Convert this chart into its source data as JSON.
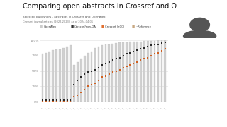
{
  "title": "Comparing open abstracts in Crossref and O",
  "subtitle": "Selected publishers - abstracts in Crossref and OpenAlex",
  "subtitle2": "Crossref journal articles (2022-2023), as of 2024-04-01",
  "legend_items": [
    "OpenAlex",
    "Crossref/non-OA",
    "Crossref (eCC)",
    "~Reference"
  ],
  "legend_colors": [
    "#cccccc",
    "#333333",
    "#e07030",
    "#c8a882"
  ],
  "n_publishers": 36,
  "bar_heights_openalex": [
    0.78,
    0.8,
    0.82,
    0.84,
    0.85,
    0.85,
    0.88,
    0.9,
    0.92,
    0.6,
    0.65,
    0.7,
    0.75,
    0.8,
    0.82,
    0.88,
    0.9,
    0.92,
    0.93,
    0.94,
    0.95,
    0.96,
    0.97,
    0.97,
    0.97,
    0.98,
    0.98,
    0.98,
    0.98,
    0.99,
    0.99,
    0.99,
    0.99,
    1.0,
    1.0,
    1.0
  ],
  "crossref_noa": [
    0.02,
    0.02,
    0.02,
    0.02,
    0.02,
    0.02,
    0.02,
    0.02,
    0.02,
    0.28,
    0.35,
    0.4,
    0.45,
    0.48,
    0.5,
    0.52,
    0.55,
    0.6,
    0.62,
    0.65,
    0.68,
    0.7,
    0.72,
    0.75,
    0.78,
    0.8,
    0.82,
    0.84,
    0.86,
    0.88,
    0.9,
    0.92,
    0.93,
    0.94,
    0.96,
    0.97
  ],
  "crossref_cc": [
    0.0,
    0.0,
    0.0,
    0.0,
    0.0,
    0.0,
    0.0,
    0.0,
    0.0,
    0.08,
    0.1,
    0.15,
    0.2,
    0.25,
    0.28,
    0.3,
    0.35,
    0.4,
    0.42,
    0.45,
    0.48,
    0.5,
    0.52,
    0.55,
    0.58,
    0.6,
    0.62,
    0.65,
    0.68,
    0.7,
    0.72,
    0.75,
    0.78,
    0.8,
    0.83,
    0.86
  ],
  "purple_bg": "#6b3fa0",
  "chart_bg": "#f8f8f8",
  "bar_color": "#d0d0d0",
  "bar_outline": "#bbbbbb",
  "dot_noa_color": "#2a2a2a",
  "dot_cc_color": "#d06020",
  "grid_color": "#e0e0e0",
  "title_color": "#111111",
  "subtitle_color": "#555555",
  "axis_label_color": "#888888",
  "ytick_labels": [
    "0%",
    "25%",
    "50%",
    "75%",
    "100%"
  ],
  "ytick_vals": [
    0.0,
    0.25,
    0.5,
    0.75,
    1.0
  ]
}
